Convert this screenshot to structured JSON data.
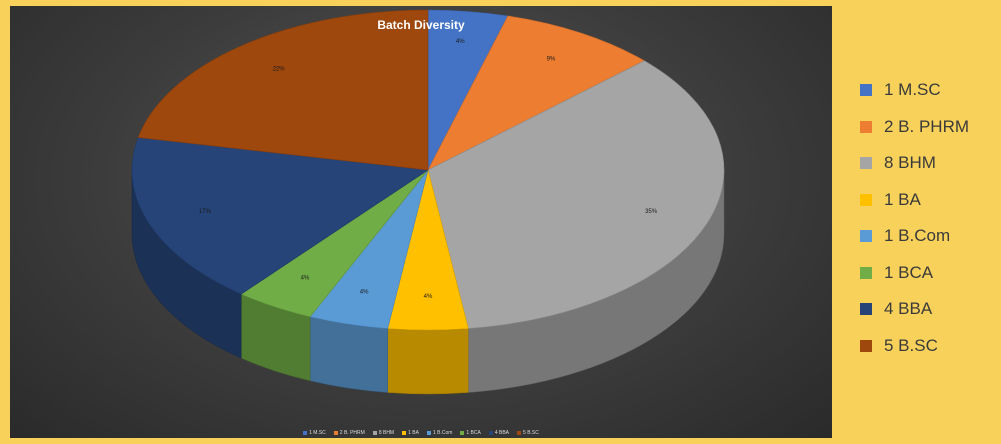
{
  "page": {
    "background": "#F7D15A"
  },
  "chart_data": {
    "type": "pie",
    "style": "3d",
    "title": "Batch Diversity",
    "categories": [
      "1 M.SC",
      "2 B. PHRM",
      "8 BHM",
      "1 BA",
      "1 B.Com",
      "1 BCA",
      "4 BBA",
      "5 B.SC"
    ],
    "values": [
      1,
      2,
      8,
      1,
      1,
      1,
      4,
      5
    ],
    "percent_labels": [
      "4%",
      "9%",
      "35%",
      "4%",
      "4%",
      "4%",
      "17%",
      "22%"
    ],
    "colors": [
      "#4472C4",
      "#ED7D31",
      "#A5A5A5",
      "#FFC000",
      "#5B9BD5",
      "#70AD47",
      "#264478",
      "#9E480E"
    ],
    "legend": {
      "placement": "right",
      "items": [
        "1 M.SC",
        "2 B. PHRM",
        "8 BHM",
        "1 BA",
        "1 B.Com",
        "1 BCA",
        "4 BBA",
        "5 B.SC"
      ]
    }
  }
}
